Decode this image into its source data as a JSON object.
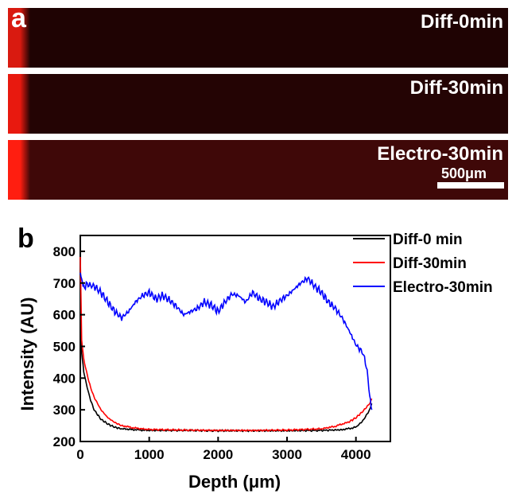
{
  "panel_a": {
    "letter": "a",
    "strips": [
      {
        "label": "Diff-0min",
        "base_color": "#1f0303",
        "edge_color": "#d91a10"
      },
      {
        "label": "Diff-30min",
        "base_color": "#240404",
        "edge_color": "#e8190f"
      },
      {
        "label": "Electro-30min",
        "base_color": "#3f0808",
        "edge_color": "#ff1e10"
      }
    ],
    "scale_bar": "500μm"
  },
  "panel_b": {
    "letter": "b"
  },
  "chart_data": {
    "type": "line",
    "xlabel": "Depth (μm)",
    "ylabel": "Intensity (AU)",
    "xlim": [
      0,
      4500
    ],
    "ylim": [
      200,
      850
    ],
    "xticks": [
      0,
      1000,
      2000,
      3000,
      4000
    ],
    "yticks": [
      200,
      300,
      400,
      500,
      600,
      700,
      800
    ],
    "legend_position": "top-right",
    "series": [
      {
        "name": "Diff-0 min",
        "color": "#000000",
        "x": [
          0,
          20,
          50,
          100,
          150,
          200,
          300,
          400,
          500,
          600,
          800,
          1000,
          1500,
          2000,
          2500,
          3000,
          3500,
          3800,
          4000,
          4100,
          4200,
          4230
        ],
        "y": [
          640,
          480,
          420,
          370,
          330,
          300,
          270,
          255,
          245,
          240,
          237,
          235,
          235,
          234,
          234,
          234,
          235,
          237,
          245,
          265,
          300,
          320
        ]
      },
      {
        "name": "Diff-30min",
        "color": "#ff0000",
        "x": [
          0,
          20,
          50,
          100,
          150,
          200,
          300,
          400,
          500,
          600,
          800,
          1000,
          1500,
          2000,
          2500,
          3000,
          3500,
          3700,
          3900,
          4000,
          4100,
          4200,
          4230
        ],
        "y": [
          780,
          520,
          460,
          410,
          370,
          340,
          300,
          275,
          260,
          250,
          242,
          238,
          236,
          235,
          235,
          236,
          240,
          248,
          262,
          275,
          295,
          320,
          335
        ]
      },
      {
        "name": "Electro-30min",
        "color": "#0000ff",
        "x": [
          0,
          30,
          60,
          100,
          200,
          300,
          400,
          500,
          600,
          700,
          800,
          900,
          1000,
          1100,
          1200,
          1300,
          1400,
          1500,
          1600,
          1700,
          1800,
          1900,
          2000,
          2100,
          2200,
          2300,
          2400,
          2500,
          2600,
          2700,
          2800,
          2900,
          3000,
          3100,
          3200,
          3300,
          3400,
          3500,
          3600,
          3700,
          3800,
          3900,
          4000,
          4100,
          4150,
          4200,
          4230
        ],
        "y": [
          730,
          700,
          690,
          695,
          690,
          670,
          640,
          610,
          590,
          610,
          640,
          660,
          670,
          650,
          660,
          645,
          625,
          600,
          610,
          620,
          640,
          630,
          610,
          640,
          665,
          660,
          640,
          670,
          650,
          640,
          625,
          645,
          660,
          680,
          700,
          715,
          690,
          670,
          640,
          620,
          590,
          550,
          505,
          480,
          440,
          350,
          300
        ]
      }
    ]
  }
}
